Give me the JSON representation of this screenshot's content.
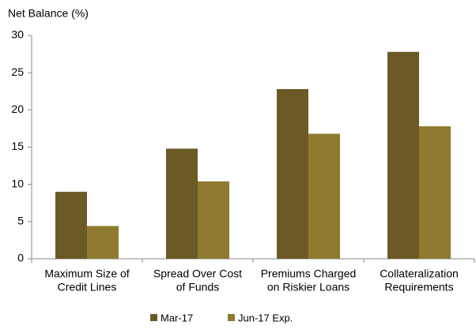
{
  "chart_data": {
    "type": "bar",
    "y_label": "Net Balance (%)",
    "categories": [
      [
        "Maximum Size of",
        "Credit Lines"
      ],
      [
        "Spread Over Cost",
        "of Funds"
      ],
      [
        "Premiums Charged",
        "on Riskier Loans"
      ],
      [
        "Collateralization",
        "Requirements"
      ]
    ],
    "series": [
      {
        "name": "Mar-17",
        "color": "#6b5a25",
        "values": [
          9,
          14.8,
          22.8,
          27.8
        ]
      },
      {
        "name": "Jun-17 Exp.",
        "color": "#8e7b30",
        "values": [
          4.4,
          10.4,
          16.8,
          17.8
        ]
      }
    ],
    "ylim": [
      0,
      30
    ],
    "yticks": [
      0,
      5,
      10,
      15,
      20,
      25,
      30
    ],
    "grid": false,
    "legend": "bottom"
  }
}
